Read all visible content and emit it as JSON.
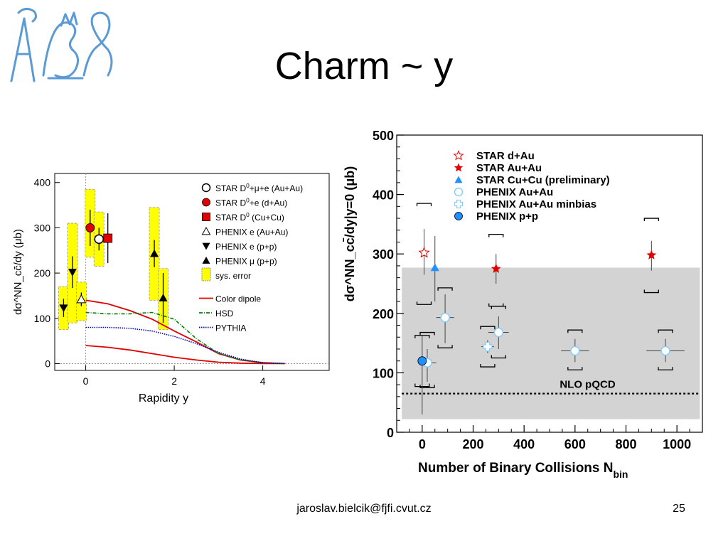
{
  "slide": {
    "title": "Charm ~ y",
    "footer_email": "jaroslav.bielcik@fjfi.cvut.cz",
    "page_number": "25",
    "logo_color": "#5b9bd5"
  },
  "chart_data": [
    {
      "type": "scatter",
      "xlabel": "Rapidity y",
      "ylabel": "dσ^NN_cc̄/dy (μb)",
      "xlim": [
        -0.7,
        5.5
      ],
      "ylim": [
        -15,
        420
      ],
      "x_ticks": [
        0,
        2,
        4
      ],
      "y_ticks": [
        0,
        100,
        200,
        300,
        400
      ],
      "legend_position": "top-right",
      "markers": [
        {
          "name": "STAR D⁰+μ+e (Au+Au)",
          "shape": "circle-open",
          "color": "#000000",
          "points": [
            {
              "x": 0.3,
              "y": 275,
              "yerr": 25
            }
          ]
        },
        {
          "name": "STAR D⁰+e (d+Au)",
          "shape": "circle-filled",
          "color": "#e00000",
          "points": [
            {
              "x": 0.1,
              "y": 300,
              "yerr": 40
            }
          ]
        },
        {
          "name": "STAR D⁰ (Cu+Cu)",
          "shape": "square-filled",
          "color": "#e00000",
          "points": [
            {
              "x": 0.5,
              "y": 277,
              "yerr": 55
            }
          ]
        },
        {
          "name": "PHENIX e (Au+Au)",
          "shape": "triangle-up-open",
          "color": "#000000",
          "points": [
            {
              "x": -0.1,
              "y": 142,
              "yerr": 15
            }
          ]
        },
        {
          "name": "PHENIX e (p+p)",
          "shape": "triangle-down-filled",
          "color": "#000000",
          "points": [
            {
              "x": -0.5,
              "y": 123,
              "yerr": 20
            },
            {
              "x": -0.3,
              "y": 202,
              "yerr": 35
            }
          ]
        },
        {
          "name": "PHENIX μ (p+p)",
          "shape": "triangle-up-filled",
          "color": "#000000",
          "points": [
            {
              "x": 1.55,
              "y": 243,
              "yerr": 30
            },
            {
              "x": 1.75,
              "y": 145,
              "yerr": 55
            }
          ]
        },
        {
          "name": "sys. error",
          "shape": "box",
          "color": "#ffff00",
          "boxes": [
            {
              "x": -0.5,
              "lo": 75,
              "hi": 170
            },
            {
              "x": -0.3,
              "lo": 90,
              "hi": 310
            },
            {
              "x": 0.1,
              "lo": 235,
              "hi": 385
            },
            {
              "x": 0.3,
              "lo": 215,
              "hi": 335
            },
            {
              "x": -0.1,
              "lo": 95,
              "hi": 180
            },
            {
              "x": 1.55,
              "lo": 140,
              "hi": 345
            },
            {
              "x": 1.75,
              "lo": 75,
              "hi": 210
            }
          ]
        }
      ],
      "curves": [
        {
          "name": "Color dipole",
          "color": "#e00000",
          "style": "solid",
          "x": [
            0,
            0.5,
            1,
            1.5,
            2,
            2.5,
            3,
            3.5,
            4,
            4.5
          ],
          "y": [
            140,
            132,
            117,
            98,
            72,
            48,
            22,
            8,
            2,
            0
          ]
        },
        {
          "name": "Color dipole",
          "color": "#e00000",
          "style": "solid",
          "x": [
            0,
            0.5,
            1,
            1.5,
            2,
            2.5,
            3,
            3.5,
            4,
            4.5
          ],
          "y": [
            40,
            36,
            30,
            22,
            14,
            8,
            3,
            1,
            0,
            0
          ]
        },
        {
          "name": "HSD",
          "color": "#008000",
          "style": "dashdot",
          "x": [
            0,
            0.5,
            1,
            1.5,
            2,
            2.5,
            3,
            3.5,
            4,
            4.5
          ],
          "y": [
            113,
            110,
            110,
            113,
            98,
            55,
            22,
            8,
            2,
            0
          ]
        },
        {
          "name": "PYTHIA",
          "color": "#0000cc",
          "style": "dotted",
          "x": [
            0,
            0.5,
            1,
            1.5,
            2,
            2.5,
            3,
            3.5,
            4,
            4.5
          ],
          "y": [
            80,
            80,
            78,
            72,
            60,
            44,
            25,
            10,
            2,
            0
          ]
        }
      ],
      "legend": [
        {
          "label": "STAR D⁰+μ+e (Au+Au)",
          "shape": "circle-open",
          "color": "#000000"
        },
        {
          "label": "STAR D⁰+e (d+Au)",
          "shape": "circle-filled",
          "color": "#e00000"
        },
        {
          "label": "STAR D⁰ (Cu+Cu)",
          "shape": "square-filled",
          "color": "#e00000"
        },
        {
          "label": "PHENIX e (Au+Au)",
          "shape": "triangle-up-open",
          "color": "#000000"
        },
        {
          "label": "PHENIX e (p+p)",
          "shape": "triangle-down-filled",
          "color": "#000000"
        },
        {
          "label": "PHENIX μ (p+p)",
          "shape": "triangle-up-filled",
          "color": "#000000"
        },
        {
          "label": "sys. error",
          "shape": "box",
          "color": "#ffff00"
        },
        {
          "label": "Color dipole",
          "shape": "line-solid",
          "color": "#e00000"
        },
        {
          "label": "HSD",
          "shape": "line-dashdot",
          "color": "#008000"
        },
        {
          "label": "PYTHIA",
          "shape": "line-dotted",
          "color": "#0000cc"
        }
      ]
    },
    {
      "type": "scatter",
      "xlabel": "Number of Binary Collisions N",
      "xlabel_sub": "bin",
      "ylabel": "dσ^NN_cc̄/dy|y=0 (μb)",
      "xlim": [
        -100,
        1100
      ],
      "ylim": [
        0,
        500
      ],
      "x_ticks": [
        0,
        200,
        400,
        600,
        800,
        1000
      ],
      "y_ticks": [
        0,
        100,
        200,
        300,
        400,
        500
      ],
      "legend_position": "top-left",
      "band": {
        "lo": 22,
        "hi": 277,
        "color": "#d3d3d3"
      },
      "nlo_line": {
        "label": "NLO pQCD",
        "y": 65
      },
      "series": [
        {
          "name": "STAR d+Au",
          "shape": "star-open",
          "color": "#e00000",
          "points": [
            {
              "x": 7.5,
              "y": 302,
              "ylo": 265,
              "yhi": 342,
              "sys_lo": 215,
              "sys_hi": 385
            }
          ]
        },
        {
          "name": "STAR Au+Au",
          "shape": "star-filled",
          "color": "#e00000",
          "points": [
            {
              "x": 290,
              "y": 275,
              "ylo": 250,
              "yhi": 300,
              "sys_lo": 212,
              "sys_hi": 333
            },
            {
              "x": 900,
              "y": 298,
              "ylo": 272,
              "yhi": 322,
              "sys_lo": 235,
              "sys_hi": 360
            }
          ]
        },
        {
          "name": "STAR Cu+Cu (preliminary)",
          "shape": "triangle-filled",
          "color": "#1e90ff",
          "points": [
            {
              "x": 50,
              "y": 277,
              "ylo": 220,
              "yhi": 330
            }
          ]
        },
        {
          "name": "PHENIX Au+Au",
          "shape": "circle-open",
          "color": "#87cefa",
          "points": [
            {
              "x": 20,
              "y": 117,
              "ylo": 85,
              "yhi": 140,
              "xerr": 35,
              "sys_lo": 75,
              "sys_hi": 168
            },
            {
              "x": 90,
              "y": 193,
              "ylo": 150,
              "yhi": 232,
              "xerr": 35,
              "sys_lo": 142,
              "sys_hi": 243
            },
            {
              "x": 300,
              "y": 168,
              "ylo": 140,
              "yhi": 195,
              "xerr": 40,
              "sys_lo": 125,
              "sys_hi": 212
            },
            {
              "x": 600,
              "y": 137,
              "ylo": 118,
              "yhi": 157,
              "xerr": 55,
              "sys_lo": 105,
              "sys_hi": 172
            },
            {
              "x": 955,
              "y": 137,
              "ylo": 118,
              "yhi": 157,
              "xerr": 75,
              "sys_lo": 105,
              "sys_hi": 172
            }
          ]
        },
        {
          "name": "PHENIX Au+Au minbias",
          "shape": "cross-open",
          "color": "#87cefa",
          "points": [
            {
              "x": 257,
              "y": 144,
              "ylo": 133,
              "yhi": 155,
              "xerr": 25,
              "sys_lo": 110,
              "sys_hi": 178
            }
          ]
        },
        {
          "name": "PHENIX p+p",
          "shape": "circle-filled",
          "color": "#1e90ff",
          "points": [
            {
              "x": 0,
              "y": 120,
              "ylo": 30,
              "yhi": 162,
              "sys_lo": 77,
              "sys_hi": 163
            }
          ]
        }
      ],
      "legend": [
        {
          "label": "STAR d+Au",
          "shape": "star-open",
          "color": "#e00000"
        },
        {
          "label": "STAR Au+Au",
          "shape": "star-filled",
          "color": "#e00000"
        },
        {
          "label": "STAR Cu+Cu (preliminary)",
          "shape": "triangle-filled",
          "color": "#1e90ff"
        },
        {
          "label": "PHENIX Au+Au",
          "shape": "circle-open",
          "color": "#87cefa"
        },
        {
          "label": "PHENIX Au+Au minbias",
          "shape": "cross-open",
          "color": "#87cefa"
        },
        {
          "label": "PHENIX p+p",
          "shape": "circle-filled",
          "color": "#1e90ff"
        }
      ]
    }
  ]
}
